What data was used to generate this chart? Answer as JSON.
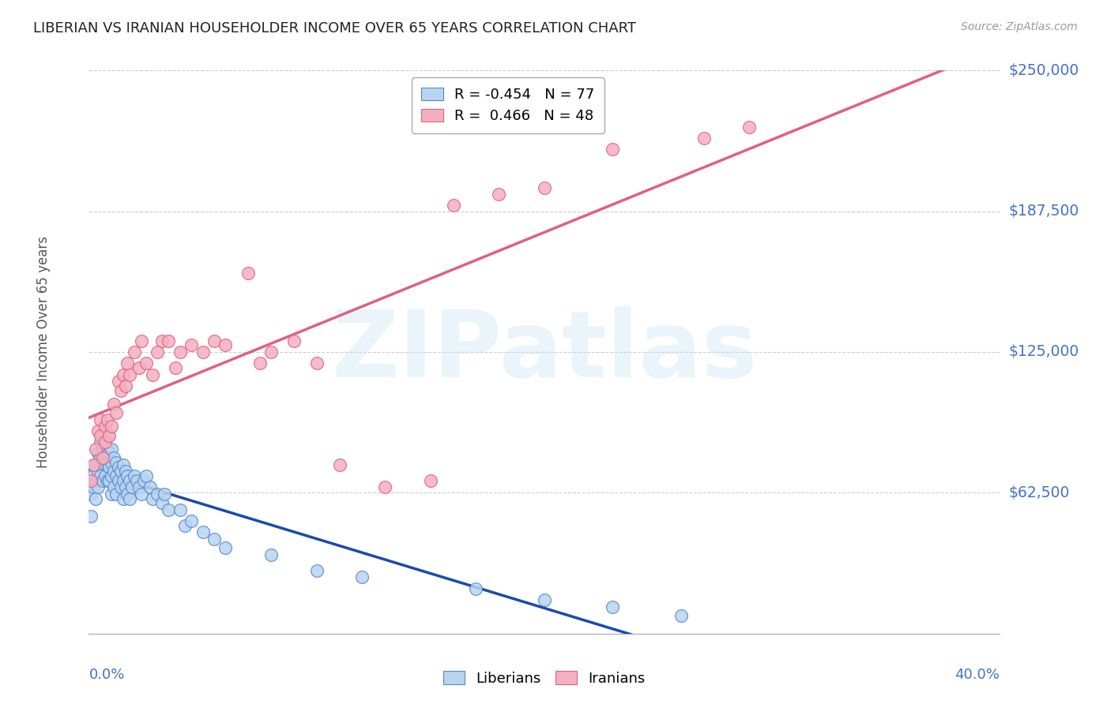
{
  "title": "LIBERIAN VS IRANIAN HOUSEHOLDER INCOME OVER 65 YEARS CORRELATION CHART",
  "source": "Source: ZipAtlas.com",
  "ylabel": "Householder Income Over 65 years",
  "yticks": [
    0,
    62500,
    125000,
    187500,
    250000
  ],
  "ytick_labels": [
    "",
    "$62,500",
    "$125,000",
    "$187,500",
    "$250,000"
  ],
  "xlim": [
    0.0,
    0.4
  ],
  "ylim": [
    0,
    250000
  ],
  "legend_r_entries": [
    "R = -0.454   N = 77",
    "R =  0.466   N = 48"
  ],
  "legend_labels": [
    "Liberians",
    "Iranians"
  ],
  "watermark": "ZIPatlas",
  "title_color": "#222222",
  "source_color": "#999999",
  "axis_label_color": "#4472c4",
  "ytick_color": "#4472c4",
  "grid_color": "#cccccc",
  "liberian_face": "#b8d4f0",
  "liberian_edge": "#5588cc",
  "iranian_face": "#f5b0c0",
  "iranian_edge": "#e06080",
  "blue_line_color": "#1a4aaa",
  "pink_line_color": "#e06080",
  "liberian_x": [
    0.001,
    0.001,
    0.002,
    0.002,
    0.003,
    0.003,
    0.003,
    0.004,
    0.004,
    0.004,
    0.005,
    0.005,
    0.005,
    0.006,
    0.006,
    0.006,
    0.006,
    0.007,
    0.007,
    0.007,
    0.007,
    0.008,
    0.008,
    0.008,
    0.008,
    0.009,
    0.009,
    0.009,
    0.01,
    0.01,
    0.01,
    0.01,
    0.011,
    0.011,
    0.011,
    0.012,
    0.012,
    0.012,
    0.013,
    0.013,
    0.014,
    0.014,
    0.015,
    0.015,
    0.015,
    0.016,
    0.016,
    0.017,
    0.017,
    0.018,
    0.018,
    0.019,
    0.02,
    0.021,
    0.022,
    0.023,
    0.024,
    0.025,
    0.027,
    0.028,
    0.03,
    0.032,
    0.033,
    0.035,
    0.04,
    0.042,
    0.045,
    0.05,
    0.055,
    0.06,
    0.08,
    0.1,
    0.12,
    0.17,
    0.2,
    0.23,
    0.26
  ],
  "liberian_y": [
    62000,
    52000,
    70000,
    65000,
    75000,
    68000,
    60000,
    80000,
    72000,
    65000,
    85000,
    78000,
    70000,
    88000,
    82000,
    76000,
    68000,
    90000,
    84000,
    78000,
    70000,
    88000,
    82000,
    76000,
    68000,
    80000,
    74000,
    68000,
    82000,
    76000,
    70000,
    62000,
    78000,
    72000,
    65000,
    76000,
    70000,
    62000,
    74000,
    68000,
    72000,
    65000,
    75000,
    68000,
    60000,
    72000,
    65000,
    70000,
    62000,
    68000,
    60000,
    65000,
    70000,
    68000,
    65000,
    62000,
    68000,
    70000,
    65000,
    60000,
    62000,
    58000,
    62000,
    55000,
    55000,
    48000,
    50000,
    45000,
    42000,
    38000,
    35000,
    28000,
    25000,
    20000,
    15000,
    12000,
    8000
  ],
  "iranian_x": [
    0.001,
    0.002,
    0.003,
    0.004,
    0.005,
    0.005,
    0.006,
    0.007,
    0.007,
    0.008,
    0.009,
    0.01,
    0.011,
    0.012,
    0.013,
    0.014,
    0.015,
    0.016,
    0.017,
    0.018,
    0.02,
    0.022,
    0.023,
    0.025,
    0.028,
    0.03,
    0.032,
    0.035,
    0.038,
    0.04,
    0.045,
    0.05,
    0.055,
    0.06,
    0.07,
    0.075,
    0.08,
    0.09,
    0.1,
    0.11,
    0.13,
    0.15,
    0.16,
    0.18,
    0.2,
    0.23,
    0.27,
    0.29
  ],
  "iranian_y": [
    68000,
    75000,
    82000,
    90000,
    88000,
    95000,
    78000,
    92000,
    85000,
    95000,
    88000,
    92000,
    102000,
    98000,
    112000,
    108000,
    115000,
    110000,
    120000,
    115000,
    125000,
    118000,
    130000,
    120000,
    115000,
    125000,
    130000,
    130000,
    118000,
    125000,
    128000,
    125000,
    130000,
    128000,
    160000,
    120000,
    125000,
    130000,
    120000,
    75000,
    65000,
    68000,
    190000,
    195000,
    198000,
    215000,
    220000,
    225000
  ]
}
